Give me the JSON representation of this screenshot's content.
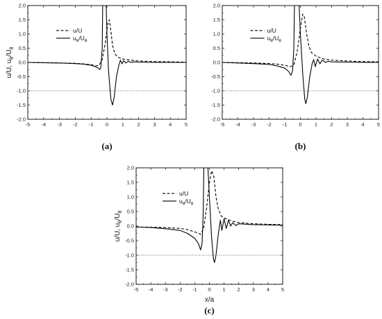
{
  "chart_data": [
    {
      "type": "line",
      "panel_label": "(a)",
      "xlabel": "",
      "ylabel": "u/U, u_θ/U_θ",
      "xlim": [
        -5,
        5
      ],
      "ylim": [
        -2.0,
        2.0
      ],
      "x_ticks": [
        -5,
        -4,
        -3,
        -2,
        -1,
        0,
        1,
        2,
        3,
        4,
        5
      ],
      "y_ticks": [
        "-2.0",
        "-1.5",
        "-1.0",
        "-0.5",
        "0.0",
        "0.5",
        "1.0",
        "1.5",
        "2.0"
      ],
      "reference_line_y": -1.0,
      "grid": false,
      "legend_position": "top-left",
      "series": [
        {
          "name": "u/U",
          "style": "dashed",
          "points": [
            [
              -5,
              0.0
            ],
            [
              -4,
              -0.01
            ],
            [
              -3,
              -0.02
            ],
            [
              -2,
              -0.03
            ],
            [
              -1.5,
              -0.05
            ],
            [
              -1,
              -0.08
            ],
            [
              -0.7,
              -0.12
            ],
            [
              -0.5,
              -0.1
            ],
            [
              -0.3,
              0.1
            ],
            [
              -0.1,
              0.7
            ],
            [
              0.05,
              1.35
            ],
            [
              0.15,
              1.5
            ],
            [
              0.25,
              1.1
            ],
            [
              0.35,
              0.6
            ],
            [
              0.5,
              0.3
            ],
            [
              0.7,
              0.18
            ],
            [
              1,
              0.12
            ],
            [
              1.5,
              0.08
            ],
            [
              2,
              0.05
            ],
            [
              3,
              0.03
            ],
            [
              4,
              0.02
            ],
            [
              5,
              0.01
            ]
          ]
        },
        {
          "name": "u_θ/U_θ",
          "style": "solid",
          "points": [
            [
              -5,
              0.0
            ],
            [
              -4,
              -0.01
            ],
            [
              -3,
              -0.02
            ],
            [
              -2,
              -0.04
            ],
            [
              -1.5,
              -0.06
            ],
            [
              -1,
              -0.1
            ],
            [
              -0.6,
              -0.18
            ],
            [
              -0.45,
              -0.25
            ],
            [
              -0.38,
              -0.15
            ],
            [
              -0.3,
              0.5
            ],
            [
              -0.27,
              2.0
            ],
            [
              -0.05,
              2.0
            ],
            [
              0.0,
              1.0
            ],
            [
              0.1,
              -0.3
            ],
            [
              0.25,
              -1.3
            ],
            [
              0.35,
              -1.5
            ],
            [
              0.45,
              -1.25
            ],
            [
              0.6,
              -0.5
            ],
            [
              0.75,
              -0.1
            ],
            [
              0.85,
              0.08
            ],
            [
              0.95,
              -0.05
            ],
            [
              1.05,
              0.06
            ],
            [
              1.2,
              -0.02
            ],
            [
              1.35,
              0.04
            ],
            [
              1.5,
              0.0
            ],
            [
              1.7,
              0.02
            ],
            [
              2,
              0.01
            ],
            [
              3,
              0.0
            ],
            [
              4,
              0.0
            ],
            [
              5,
              0.0
            ]
          ]
        }
      ]
    },
    {
      "type": "line",
      "panel_label": "(b)",
      "xlabel": "",
      "ylabel": "",
      "xlim": [
        -5,
        5
      ],
      "ylim": [
        -2.0,
        2.0
      ],
      "x_ticks": [
        -5,
        -4,
        -3,
        -2,
        -1,
        0,
        1,
        2,
        3,
        4,
        5
      ],
      "y_ticks": [
        "-2.0",
        "-1.5",
        "-1.0",
        "-0.5",
        "0.0",
        "0.5",
        "1.0",
        "1.5",
        "2.0"
      ],
      "reference_line_y": -1.0,
      "grid": false,
      "legend_position": "top-left",
      "series": [
        {
          "name": "u/U",
          "style": "dashed",
          "points": [
            [
              -5,
              0.0
            ],
            [
              -4,
              -0.01
            ],
            [
              -3,
              -0.02
            ],
            [
              -2,
              -0.04
            ],
            [
              -1.5,
              -0.06
            ],
            [
              -1,
              -0.1
            ],
            [
              -0.6,
              -0.15
            ],
            [
              -0.4,
              -0.05
            ],
            [
              -0.2,
              0.4
            ],
            [
              0.0,
              1.2
            ],
            [
              0.15,
              1.7
            ],
            [
              0.25,
              1.6
            ],
            [
              0.4,
              1.0
            ],
            [
              0.55,
              0.55
            ],
            [
              0.7,
              0.35
            ],
            [
              1,
              0.22
            ],
            [
              1.5,
              0.12
            ],
            [
              2,
              0.08
            ],
            [
              3,
              0.05
            ],
            [
              4,
              0.03
            ],
            [
              5,
              0.02
            ]
          ]
        },
        {
          "name": "u_θ/U_θ",
          "style": "solid",
          "points": [
            [
              -5,
              0.0
            ],
            [
              -4,
              -0.02
            ],
            [
              -3,
              -0.04
            ],
            [
              -2,
              -0.07
            ],
            [
              -1.5,
              -0.12
            ],
            [
              -1,
              -0.2
            ],
            [
              -0.75,
              -0.32
            ],
            [
              -0.6,
              -0.45
            ],
            [
              -0.5,
              -0.3
            ],
            [
              -0.42,
              0.5
            ],
            [
              -0.38,
              2.0
            ],
            [
              -0.08,
              2.0
            ],
            [
              0.0,
              1.0
            ],
            [
              0.15,
              -0.4
            ],
            [
              0.28,
              -1.3
            ],
            [
              0.35,
              -1.45
            ],
            [
              0.45,
              -1.2
            ],
            [
              0.6,
              -0.5
            ],
            [
              0.75,
              -0.05
            ],
            [
              0.85,
              0.1
            ],
            [
              0.95,
              -0.15
            ],
            [
              1.1,
              0.12
            ],
            [
              1.25,
              -0.05
            ],
            [
              1.4,
              0.08
            ],
            [
              1.6,
              0.0
            ],
            [
              1.8,
              0.04
            ],
            [
              2,
              0.02
            ],
            [
              3,
              0.01
            ],
            [
              4,
              0.0
            ],
            [
              5,
              0.0
            ]
          ]
        }
      ]
    },
    {
      "type": "line",
      "panel_label": "(c)",
      "xlabel": "x/a",
      "ylabel": "u/U, u_θ/U_θ",
      "xlim": [
        -5,
        5
      ],
      "ylim": [
        -2.0,
        2.0
      ],
      "x_ticks": [
        -5,
        -4,
        -3,
        -2,
        -1,
        0,
        1,
        2,
        3,
        4,
        5
      ],
      "y_ticks": [
        "-2.0",
        "-1.5",
        "-1.0",
        "-0.5",
        "0.0",
        "0.5",
        "1.0",
        "1.5",
        "2.0"
      ],
      "reference_line_y": -1.0,
      "grid": false,
      "legend_position": "top-left",
      "series": [
        {
          "name": "u/U",
          "style": "dashed",
          "points": [
            [
              -5,
              -0.03
            ],
            [
              -4,
              -0.04
            ],
            [
              -3,
              -0.05
            ],
            [
              -2,
              -0.08
            ],
            [
              -1.5,
              -0.12
            ],
            [
              -1,
              -0.2
            ],
            [
              -0.6,
              -0.28
            ],
            [
              -0.4,
              -0.1
            ],
            [
              -0.2,
              0.6
            ],
            [
              0.0,
              1.5
            ],
            [
              0.15,
              1.9
            ],
            [
              0.3,
              1.7
            ],
            [
              0.45,
              1.0
            ],
            [
              0.6,
              0.6
            ],
            [
              0.8,
              0.35
            ],
            [
              1,
              0.28
            ],
            [
              1.5,
              0.18
            ],
            [
              2,
              0.12
            ],
            [
              3,
              0.08
            ],
            [
              4,
              0.06
            ],
            [
              5,
              0.05
            ]
          ]
        },
        {
          "name": "u_θ/U_θ",
          "style": "solid",
          "points": [
            [
              -5,
              -0.03
            ],
            [
              -4,
              -0.05
            ],
            [
              -3,
              -0.09
            ],
            [
              -2,
              -0.15
            ],
            [
              -1.5,
              -0.25
            ],
            [
              -1,
              -0.42
            ],
            [
              -0.75,
              -0.6
            ],
            [
              -0.6,
              -0.82
            ],
            [
              -0.5,
              -0.6
            ],
            [
              -0.42,
              0.5
            ],
            [
              -0.38,
              2.0
            ],
            [
              -0.1,
              2.0
            ],
            [
              0.0,
              1.0
            ],
            [
              0.15,
              -0.4
            ],
            [
              0.28,
              -1.15
            ],
            [
              0.35,
              -1.25
            ],
            [
              0.45,
              -1.0
            ],
            [
              0.6,
              -0.3
            ],
            [
              0.75,
              0.2
            ],
            [
              0.85,
              -0.15
            ],
            [
              1.0,
              0.25
            ],
            [
              1.15,
              -0.08
            ],
            [
              1.3,
              0.2
            ],
            [
              1.45,
              0.0
            ],
            [
              1.6,
              0.12
            ],
            [
              1.8,
              0.02
            ],
            [
              2,
              0.08
            ],
            [
              3,
              0.05
            ],
            [
              4,
              0.04
            ],
            [
              5,
              0.03
            ]
          ]
        }
      ]
    }
  ]
}
